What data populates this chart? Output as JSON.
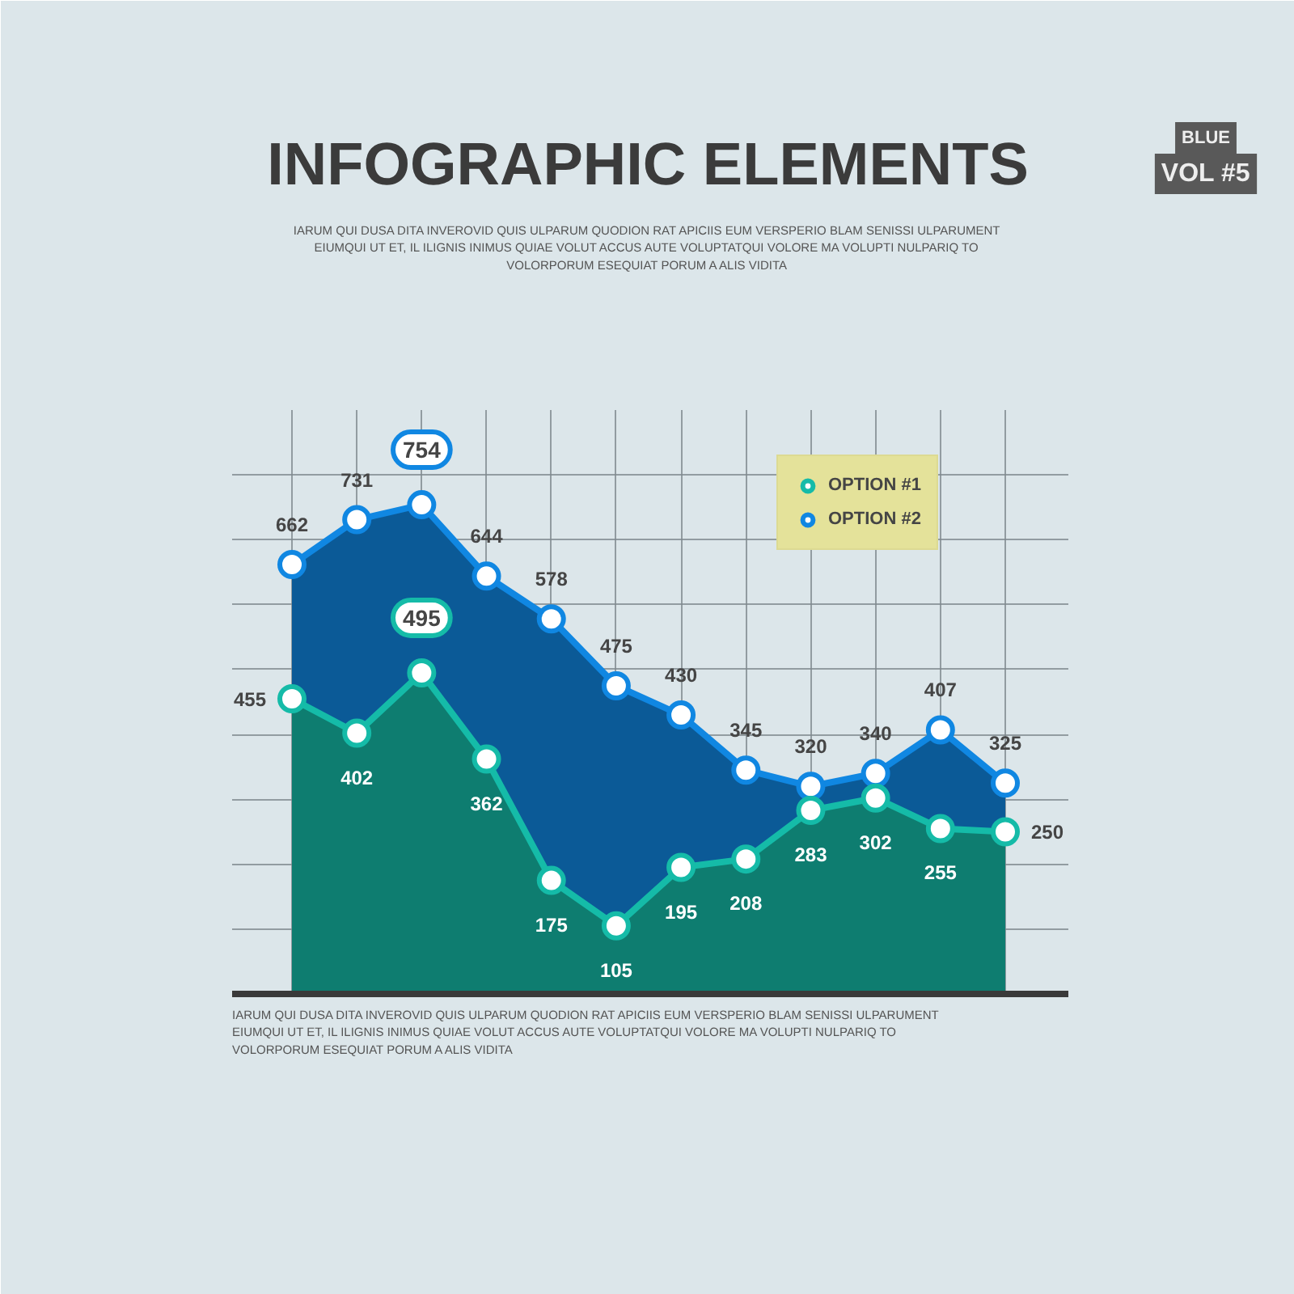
{
  "chart_data": {
    "type": "area",
    "title": "INFOGRAPHIC ELEMENTS",
    "subtitle": "IARUM QUI DUSA DITA INVEROVID QUIS ULPARUM QUODION RAT APICIIS EUM VERSPERIO BLAM SENISSI ULPARUMENT EIUMQUI UT ET, IL ILIGNIS INIMUS QUIAE VOLUT ACCUS AUTE VOLUPTATQUI VOLORE MA VOLUPTI NULPARIQ TO VOLORPORUM ESEQUIAT PORUM A ALIS VIDITA",
    "annotations": [
      "IARUM QUI DUSA DITA INVEROVID QUIS ULPARUM QUODION RAT APICIIS EUM VERSPERIO BLAM SENISSI ULPARUMENT EIUMQUI UT ET, IL ILIGNIS INIMUS QUIAE VOLUT ACCUS AUTE VOLUPTATQUI VOLORE MA VOLUPTI NULPARIQ TO VOLORPORUM ESEQUIAT PORUM A ALIS VIDITA",
      "BLUE",
      "VOL #5"
    ],
    "categories": [
      null,
      null,
      null,
      null,
      null,
      null,
      null,
      null,
      null,
      null,
      null,
      null
    ],
    "series": [
      {
        "name": "OPTION #1",
        "color": "#0e7d70",
        "values": [
          455,
          402,
          495,
          362,
          175,
          105,
          195,
          208,
          283,
          302,
          255,
          250
        ]
      },
      {
        "name": "OPTION #2",
        "color": "#0b5a97",
        "values": [
          662,
          731,
          754,
          644,
          578,
          475,
          430,
          345,
          320,
          340,
          407,
          325
        ]
      }
    ],
    "ylim": [
      0,
      900
    ],
    "yticks": [
      {
        "value": 100,
        "label": null
      },
      {
        "value": 200,
        "label": null
      },
      {
        "value": 300,
        "label": null
      },
      {
        "value": 400,
        "label": null
      },
      {
        "value": 500,
        "label": null
      },
      {
        "value": 600,
        "label": null
      },
      {
        "value": 700,
        "label": null
      },
      {
        "value": 800,
        "label": null
      }
    ],
    "grid": true,
    "legend": "top right",
    "marker": "circle",
    "line_style": "solid",
    "data_labels": true
  }
}
